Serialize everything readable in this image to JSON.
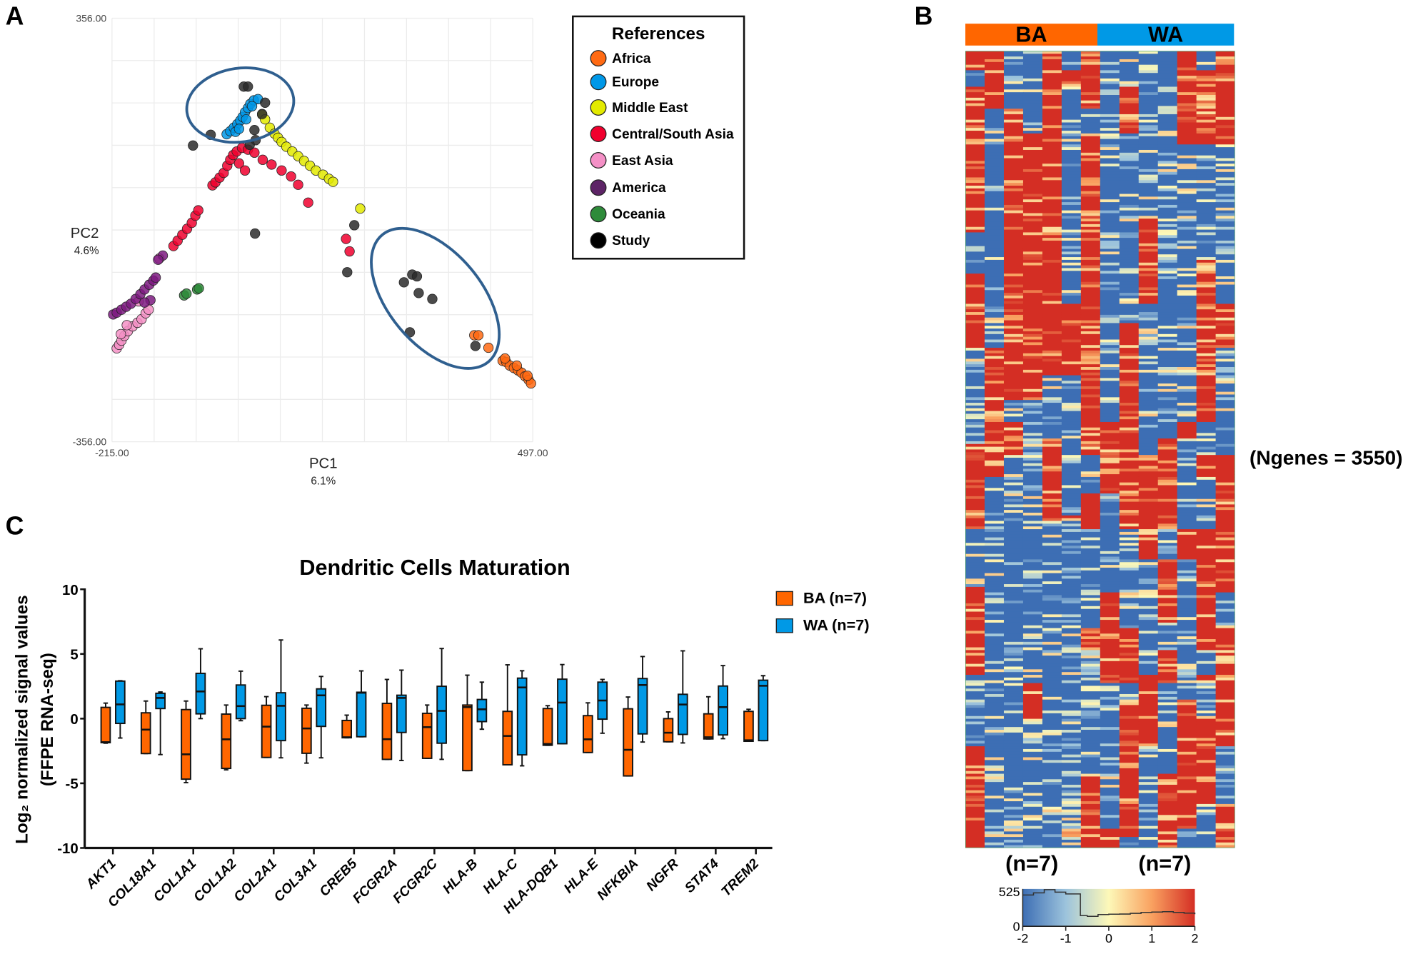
{
  "panel_labels": {
    "a": "A",
    "b": "B",
    "c": "C"
  },
  "chart_data": [
    {
      "panel": "A",
      "type": "scatter",
      "xlabel": "PC1",
      "xlabel_sub": "6.1%",
      "ylabel": "PC2",
      "ylabel_sub": "4.6%",
      "xlim": [
        -215,
        497
      ],
      "ylim": [
        -356,
        356
      ],
      "x_tick_labels": [
        "-215.00",
        "497.00"
      ],
      "y_tick_labels": [
        "356.00",
        "-356.00"
      ],
      "grid": true,
      "grid_divisions": 10,
      "legend": {
        "title": "References",
        "placement": "top-right (outside)"
      },
      "series": [
        {
          "name": "Africa",
          "color": "#ff6a13",
          "points": [
            [
              398,
              -177
            ],
            [
              405,
              -177
            ],
            [
              422,
              -198
            ],
            [
              446,
              -220
            ],
            [
              452,
              -222
            ],
            [
              458,
              -228
            ],
            [
              465,
              -232
            ],
            [
              472,
              -236
            ],
            [
              478,
              -240
            ],
            [
              484,
              -246
            ],
            [
              490,
              -252
            ],
            [
              494,
              -258
            ],
            [
              450,
              -216
            ],
            [
              488,
              -245
            ],
            [
              470,
              -228
            ]
          ]
        },
        {
          "name": "Europe",
          "color": "#0098e8",
          "points": [
            [
              -21,
              161
            ],
            [
              -15,
              166
            ],
            [
              -9,
              172
            ],
            [
              -3,
              178
            ],
            [
              2,
              184
            ],
            [
              6,
              190
            ],
            [
              10,
              198
            ],
            [
              15,
              205
            ],
            [
              19,
              212
            ],
            [
              25,
              218
            ],
            [
              32,
              220
            ],
            [
              -6,
              165
            ],
            [
              12,
              186
            ],
            [
              0,
              170
            ],
            [
              22,
              208
            ]
          ]
        },
        {
          "name": "Middle East",
          "color": "#e3ea00",
          "points": [
            [
              39,
              194
            ],
            [
              44,
              186
            ],
            [
              52,
              172
            ],
            [
              60,
              162
            ],
            [
              66,
              155
            ],
            [
              72,
              148
            ],
            [
              80,
              140
            ],
            [
              90,
              132
            ],
            [
              100,
              124
            ],
            [
              110,
              116
            ],
            [
              120,
              108
            ],
            [
              130,
              100
            ],
            [
              142,
              93
            ],
            [
              152,
              86
            ],
            [
              159,
              81
            ],
            [
              205,
              36
            ]
          ]
        },
        {
          "name": "Central/South Asia",
          "color": "#f0002e",
          "points": [
            [
              -45,
              75
            ],
            [
              -40,
              80
            ],
            [
              -33,
              88
            ],
            [
              -26,
              96
            ],
            [
              -20,
              108
            ],
            [
              -15,
              118
            ],
            [
              -10,
              126
            ],
            [
              -4,
              132
            ],
            [
              5,
              138
            ],
            [
              15,
              135
            ],
            [
              26,
              130
            ],
            [
              0,
              112
            ],
            [
              10,
              100
            ],
            [
              40,
              118
            ],
            [
              55,
              110
            ],
            [
              72,
              100
            ],
            [
              88,
              90
            ],
            [
              100,
              76
            ],
            [
              117,
              46
            ],
            [
              -111,
              -27
            ],
            [
              -104,
              -18
            ],
            [
              -96,
              -8
            ],
            [
              -88,
              2
            ],
            [
              -80,
              12
            ],
            [
              -74,
              24
            ],
            [
              -69,
              33
            ],
            [
              181,
              -15
            ],
            [
              187,
              -36
            ]
          ]
        },
        {
          "name": "East Asia",
          "color": "#f490c6",
          "points": [
            [
              -207,
              -199
            ],
            [
              -203,
              -193
            ],
            [
              -199,
              -186
            ],
            [
              -194,
              -178
            ],
            [
              -188,
              -170
            ],
            [
              -180,
              -162
            ],
            [
              -172,
              -156
            ],
            [
              -165,
              -150
            ],
            [
              -158,
              -140
            ],
            [
              -153,
              -134
            ],
            [
              -190,
              -160
            ],
            [
              -200,
              -175
            ],
            [
              -135,
              -48
            ],
            [
              -170,
              -120
            ]
          ]
        },
        {
          "name": "America",
          "color": "#7d1a80",
          "points": [
            [
              -213,
              -142
            ],
            [
              -207,
              -139
            ],
            [
              -199,
              -134
            ],
            [
              -191,
              -129
            ],
            [
              -183,
              -124
            ],
            [
              -175,
              -116
            ],
            [
              -167,
              -108
            ],
            [
              -160,
              -100
            ],
            [
              -152,
              -92
            ],
            [
              -145,
              -85
            ],
            [
              -141,
              -80
            ],
            [
              -150,
              -118
            ],
            [
              -129,
              -43
            ],
            [
              -137,
              -50
            ],
            [
              -160,
              -122
            ]
          ]
        },
        {
          "name": "Oceania",
          "color": "#2e8b3a",
          "points": [
            [
              -93,
              -110
            ],
            [
              -89,
              -107
            ],
            [
              -71,
              -100
            ],
            [
              -68,
              -98
            ]
          ]
        },
        {
          "name": "Study",
          "color": "#2b2b2b",
          "points": [
            [
              8,
              241
            ],
            [
              15,
              241
            ],
            [
              44,
              214
            ],
            [
              39,
              195
            ],
            [
              26,
              168
            ],
            [
              28,
              151
            ],
            [
              18,
              143
            ],
            [
              -48,
              160
            ],
            [
              -78,
              142
            ],
            [
              27,
              -6
            ],
            [
              195,
              8
            ],
            [
              183,
              -71
            ],
            [
              293,
              -75
            ],
            [
              301,
              -78
            ],
            [
              279,
              -88
            ],
            [
              304,
              -106
            ],
            [
              327,
              -116
            ],
            [
              289,
              -172
            ],
            [
              400,
              -195
            ]
          ]
        }
      ],
      "annotations": [
        {
          "type": "ellipse",
          "color": "#2f5f8f",
          "center": [
            2,
            210
          ],
          "radii": [
            91,
            62
          ],
          "rotation_deg": -8
        },
        {
          "type": "ellipse",
          "color": "#2f5f8f",
          "center": [
            332,
            -115
          ],
          "radii": [
            140,
            78
          ],
          "rotation_deg": 50
        }
      ]
    },
    {
      "panel": "B",
      "type": "heatmap",
      "column_groups": [
        {
          "label": "BA",
          "n_label": "(n=7)",
          "columns": 7,
          "color": "#ff6600"
        },
        {
          "label": "WA",
          "n_label": "(n=7)",
          "columns": 7,
          "color": "#0099e6"
        }
      ],
      "annotation": "(Ngenes = 3550)",
      "color_scale": {
        "range": [
          -2,
          2
        ],
        "ticks": [
          "-2",
          "-1",
          "0",
          "1",
          "2"
        ],
        "colors": [
          "#3d6eb4",
          "#9cc3dc",
          "#fdf8b8",
          "#f9a160",
          "#d42e24"
        ],
        "histogram_y_ticks": [
          "525",
          "0"
        ],
        "histogram_max": 525,
        "histogram": {
          "x": [
            -2,
            -1.75,
            -1.5,
            -1.25,
            -1,
            -0.75,
            -0.66,
            -0.5,
            -0.25,
            0,
            0.25,
            0.5,
            0.75,
            1,
            1.25,
            1.5,
            1.75,
            2
          ],
          "counts": [
            440,
            470,
            515,
            480,
            455,
            455,
            150,
            140,
            165,
            170,
            172,
            182,
            195,
            200,
            205,
            195,
            185,
            170
          ]
        }
      }
    },
    {
      "panel": "C",
      "type": "box",
      "title": "Dendritic Cells Maturation",
      "ylabel_line1": "Log₂ normalized signal  values",
      "ylabel_line2": "(FFPE RNA-seq)",
      "ylim": [
        -10,
        10
      ],
      "y_ticks": [
        "10",
        "5",
        "0",
        "-5",
        "-10"
      ],
      "y_tick_values": [
        10,
        5,
        0,
        -5,
        -10
      ],
      "legend": {
        "placement": "top-right"
      },
      "series": [
        {
          "name": "BA (n=7)",
          "color": "#ff6600"
        },
        {
          "name": "WA (n=7)",
          "color": "#0099e6"
        }
      ],
      "categories": [
        "AKT1",
        "COL18A1",
        "COL1A1",
        "COL1A2",
        "COL2A1",
        "COL3A1",
        "CREB5",
        "FCGR2A",
        "FCGR2C",
        "HLA-B",
        "HLA-C",
        "HLA-DQB1",
        "HLA-E",
        "NFKBIA",
        "NGFR",
        "STAT4",
        "TREM2"
      ],
      "boxes_note": "[min, q1, median, q3, max]",
      "BA": [
        [
          -1.9,
          -1.86,
          -1.82,
          0.87,
          1.2
        ],
        [
          -2.7,
          -2.7,
          -0.85,
          0.45,
          1.36
        ],
        [
          -4.95,
          -4.68,
          -2.76,
          0.7,
          1.36
        ],
        [
          -3.96,
          -3.85,
          -1.6,
          0.35,
          1.05
        ],
        [
          -3.0,
          -3.0,
          -0.62,
          1.03,
          1.7
        ],
        [
          -3.44,
          -2.68,
          -0.76,
          0.8,
          1.05
        ],
        [
          -1.48,
          -1.48,
          -1.44,
          -0.14,
          0.27
        ],
        [
          -3.15,
          -3.15,
          -1.59,
          1.18,
          3.03
        ],
        [
          -3.07,
          -3.07,
          -0.66,
          0.41,
          1.05
        ],
        [
          -4.02,
          -4.02,
          0.89,
          1.05,
          3.36
        ],
        [
          -3.57,
          -3.57,
          -1.34,
          0.56,
          4.16
        ],
        [
          -2.06,
          -2.06,
          -1.96,
          0.78,
          1.0
        ],
        [
          -2.62,
          -2.62,
          -1.6,
          0.23,
          1.22
        ],
        [
          -4.43,
          -4.43,
          -2.41,
          0.76,
          1.67
        ],
        [
          -1.79,
          -1.79,
          -1.09,
          0.0,
          0.52
        ],
        [
          -1.57,
          -1.57,
          -1.44,
          0.37,
          1.69
        ],
        [
          -1.75,
          -1.75,
          -1.67,
          0.56,
          0.72
        ]
      ],
      "WA": [
        [
          -1.5,
          -0.37,
          1.1,
          2.9,
          2.93
        ],
        [
          -2.78,
          0.78,
          1.6,
          1.96,
          2.06
        ],
        [
          0.0,
          0.37,
          2.1,
          3.5,
          5.4
        ],
        [
          -0.16,
          0.0,
          0.97,
          2.6,
          3.67
        ],
        [
          -3.03,
          -1.7,
          0.99,
          2.0,
          6.08
        ],
        [
          -3.03,
          -0.6,
          1.8,
          2.3,
          3.26
        ],
        [
          -1.4,
          -1.4,
          2.0,
          2.04,
          3.69
        ],
        [
          -3.24,
          -1.07,
          1.6,
          1.81,
          3.75
        ],
        [
          -3.15,
          -1.9,
          0.6,
          2.5,
          5.42
        ],
        [
          -0.82,
          -0.23,
          0.72,
          1.48,
          2.82
        ],
        [
          -3.65,
          -2.8,
          2.41,
          3.13,
          3.7
        ],
        [
          -1.94,
          -1.94,
          1.24,
          3.05,
          4.18
        ],
        [
          -1.13,
          -0.04,
          1.4,
          2.82,
          3.03
        ],
        [
          -1.81,
          -1.18,
          2.6,
          3.1,
          4.8
        ],
        [
          -1.88,
          -1.22,
          1.09,
          1.88,
          5.24
        ],
        [
          -1.55,
          -1.26,
          0.89,
          2.52,
          4.1
        ],
        [
          -1.7,
          -1.7,
          2.54,
          2.97,
          3.32
        ]
      ]
    }
  ]
}
